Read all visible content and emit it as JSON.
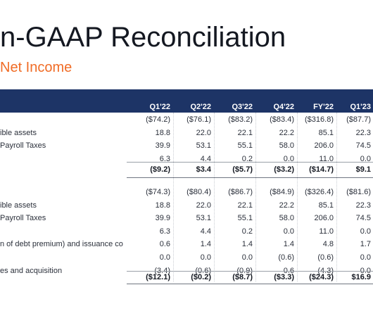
{
  "title": "n-GAAP Reconciliation",
  "subtitle": "Net Income",
  "columns": [
    "Q1'22",
    "Q2'22",
    "Q3'22",
    "Q4'22",
    "FY'22",
    "Q1'23"
  ],
  "section1": {
    "rows": [
      {
        "label": "",
        "values": [
          "($74.2)",
          "($76.1)",
          "($83.2)",
          "($83.4)",
          "($316.8)",
          "($87.7)"
        ]
      },
      {
        "label": "ible assets",
        "values": [
          "18.8",
          "22.0",
          "22.1",
          "22.2",
          "85.1",
          "22.3"
        ]
      },
      {
        "label": "Payroll Taxes",
        "values": [
          "39.9",
          "53.1",
          "55.1",
          "58.0",
          "206.0",
          "74.5"
        ]
      },
      {
        "label": "",
        "values": [
          "6.3",
          "4.4",
          "0.2",
          "0.0",
          "11.0",
          "0.0"
        ]
      }
    ],
    "total": [
      "($9.2)",
      "$3.4",
      "($5.7)",
      "($3.2)",
      "($14.7)",
      "$9.1"
    ]
  },
  "section2": {
    "rows": [
      {
        "label": "",
        "values": [
          "($74.3)",
          "($80.4)",
          "($86.7)",
          "($84.9)",
          "($326.4)",
          "($81.6)"
        ]
      },
      {
        "label": "ible assets",
        "values": [
          "18.8",
          "22.0",
          "22.1",
          "22.2",
          "85.1",
          "22.3"
        ]
      },
      {
        "label": "Payroll Taxes",
        "values": [
          "39.9",
          "53.1",
          "55.1",
          "58.0",
          "206.0",
          "74.5"
        ]
      },
      {
        "label": "",
        "values": [
          "6.3",
          "4.4",
          "0.2",
          "0.0",
          "11.0",
          "0.0"
        ]
      },
      {
        "label": "n of debt premium) and issuance co",
        "values": [
          "0.6",
          "1.4",
          "1.4",
          "1.4",
          "4.8",
          "1.7"
        ]
      },
      {
        "label": "",
        "values": [
          "0.0",
          "0.0",
          "0.0",
          "(0.6)",
          "(0.6)",
          "0.0"
        ]
      },
      {
        "label": "es and acquisition",
        "values": [
          "(3.4)",
          "(0.6)",
          "(0.9)",
          "0.6",
          "(4.3)",
          "0.0"
        ]
      }
    ],
    "total": [
      "($12.1)",
      "($0.2)",
      "($8.7)",
      "($3.3)",
      "($24.3)",
      "$16.9"
    ]
  }
}
